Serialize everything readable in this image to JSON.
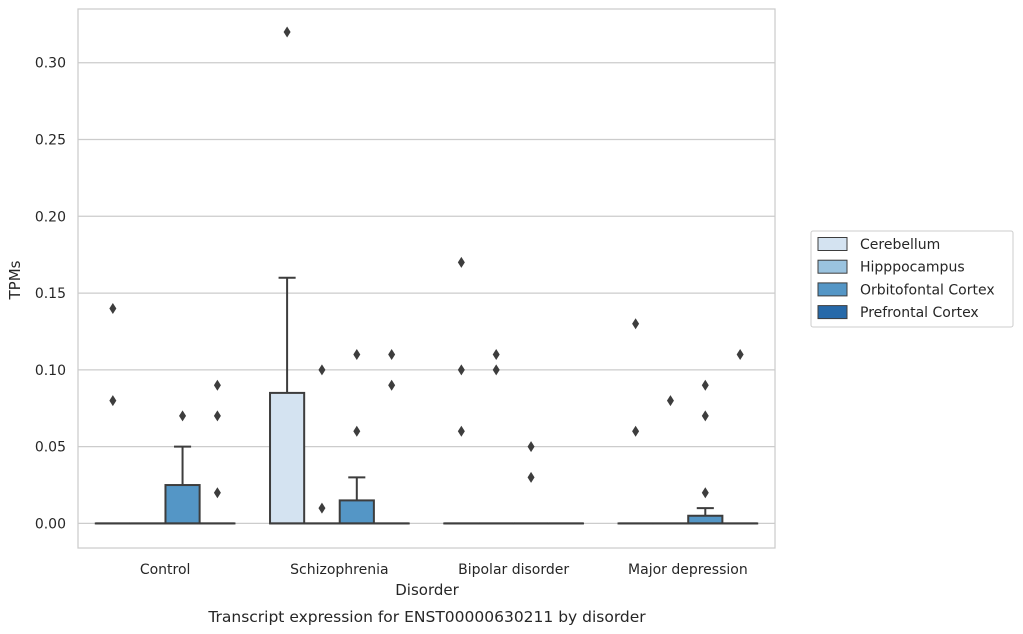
{
  "caption": "Transcript expression for ENST00000630211 by disorder",
  "chart_data": {
    "type": "box",
    "xlabel": "Disorder",
    "ylabel": "TPMs",
    "ylim": [
      -0.016,
      0.335
    ],
    "yticks": [
      0.0,
      0.05,
      0.1,
      0.15,
      0.2,
      0.25,
      0.3
    ],
    "ytick_labels": [
      "0.00",
      "0.05",
      "0.10",
      "0.15",
      "0.20",
      "0.25",
      "0.30"
    ],
    "grid": "horizontal",
    "legend_position": "right",
    "categories": [
      "Control",
      "Schizophrenia",
      "Bipolar disorder",
      "Major depression"
    ],
    "series": [
      {
        "name": "Cerebellum",
        "color": "#d4e3f1",
        "boxes": [
          {
            "q1": 0,
            "median": 0,
            "q3": 0,
            "whisker_low": 0,
            "whisker_high": 0,
            "outliers": [
              0.08,
              0.14
            ]
          },
          {
            "q1": 0,
            "median": 0,
            "q3": 0.085,
            "whisker_low": 0,
            "whisker_high": 0.16,
            "outliers": [
              0.32
            ]
          },
          {
            "q1": 0,
            "median": 0,
            "q3": 0,
            "whisker_low": 0,
            "whisker_high": 0,
            "outliers": [
              0.06,
              0.1,
              0.17
            ]
          },
          {
            "q1": 0,
            "median": 0,
            "q3": 0,
            "whisker_low": 0,
            "whisker_high": 0,
            "outliers": [
              0.06,
              0.13
            ]
          }
        ]
      },
      {
        "name": "Hipppocampus",
        "color": "#9ac3df",
        "boxes": [
          {
            "q1": 0,
            "median": 0,
            "q3": 0,
            "whisker_low": 0,
            "whisker_high": 0,
            "outliers": []
          },
          {
            "q1": 0,
            "median": 0,
            "q3": 0,
            "whisker_low": 0,
            "whisker_high": 0,
            "outliers": [
              0.01,
              0.1
            ]
          },
          {
            "q1": 0,
            "median": 0,
            "q3": 0,
            "whisker_low": 0,
            "whisker_high": 0,
            "outliers": [
              0.1,
              0.11
            ]
          },
          {
            "q1": 0,
            "median": 0,
            "q3": 0,
            "whisker_low": 0,
            "whisker_high": 0,
            "outliers": [
              0.08
            ]
          }
        ]
      },
      {
        "name": "Orbitofontal Cortex",
        "color": "#5496c6",
        "boxes": [
          {
            "q1": 0,
            "median": 0,
            "q3": 0.025,
            "whisker_low": 0,
            "whisker_high": 0.05,
            "outliers": [
              0.07
            ]
          },
          {
            "q1": 0,
            "median": 0,
            "q3": 0.015,
            "whisker_low": 0,
            "whisker_high": 0.03,
            "outliers": [
              0.06,
              0.11
            ]
          },
          {
            "q1": 0,
            "median": 0,
            "q3": 0,
            "whisker_low": 0,
            "whisker_high": 0,
            "outliers": [
              0.03,
              0.05
            ]
          },
          {
            "q1": 0,
            "median": 0,
            "q3": 0.005,
            "whisker_low": 0,
            "whisker_high": 0.01,
            "outliers": [
              0.02,
              0.07,
              0.09
            ]
          }
        ]
      },
      {
        "name": "Prefrontal Cortex",
        "color": "#2669a9",
        "boxes": [
          {
            "q1": 0,
            "median": 0,
            "q3": 0,
            "whisker_low": 0,
            "whisker_high": 0,
            "outliers": [
              0.02,
              0.07,
              0.09
            ]
          },
          {
            "q1": 0,
            "median": 0,
            "q3": 0,
            "whisker_low": 0,
            "whisker_high": 0,
            "outliers": [
              0.09,
              0.11
            ]
          },
          {
            "q1": 0,
            "median": 0,
            "q3": 0,
            "whisker_low": 0,
            "whisker_high": 0,
            "outliers": []
          },
          {
            "q1": 0,
            "median": 0,
            "q3": 0,
            "whisker_low": 0,
            "whisker_high": 0,
            "outliers": [
              0.11
            ]
          }
        ]
      }
    ]
  }
}
